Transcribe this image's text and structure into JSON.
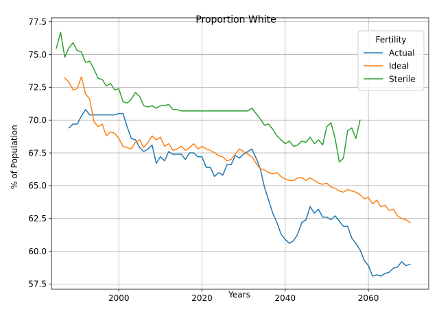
{
  "chart_data": {
    "type": "line",
    "title": "Proportion White",
    "xlabel": "Years",
    "ylabel": "% of Population",
    "xlim": [
      1983.8,
      2074.5
    ],
    "ylim": [
      57.1,
      77.8
    ],
    "xticks": [
      2000,
      2020,
      2040,
      2060
    ],
    "yticks": [
      57.5,
      60.0,
      62.5,
      65.0,
      67.5,
      70.0,
      72.5,
      75.0,
      77.5
    ],
    "grid": true,
    "legend": {
      "title": "Fertility",
      "position": "top-right"
    },
    "colors": {
      "Actual": "#1f77b4",
      "Ideal": "#ff7f0e",
      "Sterile": "#2ca02c"
    },
    "series": [
      {
        "name": "Actual",
        "x": [
          1988,
          1989,
          1990,
          1991,
          1992,
          1993,
          1994,
          1995,
          1996,
          1997,
          1998,
          1999,
          2000,
          2001,
          2002,
          2003,
          2004,
          2005,
          2006,
          2007,
          2008,
          2009,
          2010,
          2011,
          2012,
          2013,
          2014,
          2015,
          2016,
          2017,
          2018,
          2019,
          2020,
          2021,
          2022,
          2023,
          2024,
          2025,
          2026,
          2027,
          2028,
          2029,
          2030,
          2031,
          2032,
          2033,
          2034,
          2035,
          2036,
          2037,
          2038,
          2039,
          2040,
          2041,
          2042,
          2043,
          2044,
          2045,
          2046,
          2047,
          2048,
          2049,
          2050,
          2051,
          2052,
          2053,
          2054,
          2055,
          2056,
          2057,
          2058,
          2059,
          2060,
          2061,
          2062,
          2063,
          2064,
          2065,
          2066,
          2067,
          2068,
          2069,
          2070
        ],
        "y": [
          69.4,
          69.7,
          69.7,
          70.3,
          70.8,
          70.4,
          70.4,
          70.4,
          70.4,
          70.4,
          70.4,
          70.4,
          70.5,
          70.5,
          69.5,
          68.6,
          68.5,
          67.9,
          67.6,
          67.8,
          68.1,
          66.7,
          67.2,
          66.9,
          67.6,
          67.4,
          67.4,
          67.4,
          67.0,
          67.5,
          67.5,
          67.2,
          67.2,
          66.4,
          66.4,
          65.7,
          66.0,
          65.8,
          66.6,
          66.6,
          67.3,
          67.1,
          67.4,
          67.6,
          67.8,
          67.1,
          66.3,
          64.9,
          63.9,
          62.9,
          62.2,
          61.3,
          60.9,
          60.6,
          60.8,
          61.3,
          62.2,
          62.4,
          63.4,
          62.9,
          63.2,
          62.6,
          62.6,
          62.4,
          62.7,
          62.3,
          61.9,
          61.9,
          61.0,
          60.6,
          60.1,
          59.3,
          58.9,
          58.1,
          58.2,
          58.1,
          58.3,
          58.4,
          58.7,
          58.8,
          59.2,
          58.9,
          59.0
        ]
      },
      {
        "name": "Ideal",
        "x": [
          1987,
          1988,
          1989,
          1990,
          1991,
          1992,
          1993,
          1994,
          1995,
          1996,
          1997,
          1998,
          1999,
          2000,
          2001,
          2002,
          2003,
          2004,
          2005,
          2006,
          2007,
          2008,
          2009,
          2010,
          2011,
          2012,
          2013,
          2014,
          2015,
          2016,
          2017,
          2018,
          2019,
          2020,
          2021,
          2022,
          2023,
          2024,
          2025,
          2026,
          2027,
          2028,
          2029,
          2030,
          2031,
          2032,
          2033,
          2034,
          2035,
          2036,
          2037,
          2038,
          2039,
          2040,
          2041,
          2042,
          2043,
          2044,
          2045,
          2046,
          2047,
          2048,
          2049,
          2050,
          2051,
          2052,
          2053,
          2054,
          2055,
          2056,
          2057,
          2058,
          2059,
          2060,
          2061,
          2062,
          2063,
          2064,
          2065,
          2066,
          2067,
          2068,
          2069,
          2070
        ],
        "y": [
          73.2,
          72.9,
          72.3,
          72.4,
          73.3,
          72.0,
          71.6,
          69.9,
          69.5,
          69.7,
          68.8,
          69.1,
          69.0,
          68.6,
          68.0,
          67.9,
          67.8,
          68.3,
          68.5,
          67.9,
          68.3,
          68.8,
          68.5,
          68.7,
          68.0,
          68.2,
          67.7,
          67.8,
          68.0,
          67.7,
          67.9,
          68.2,
          67.8,
          68.0,
          67.8,
          67.7,
          67.5,
          67.3,
          67.2,
          66.9,
          67.0,
          67.4,
          67.8,
          67.6,
          67.4,
          67.2,
          66.7,
          66.3,
          66.2,
          66.0,
          65.9,
          66.0,
          65.7,
          65.5,
          65.4,
          65.4,
          65.6,
          65.6,
          65.4,
          65.6,
          65.4,
          65.2,
          65.1,
          65.2,
          64.9,
          64.8,
          64.6,
          64.5,
          64.7,
          64.6,
          64.5,
          64.3,
          64.0,
          64.1,
          63.6,
          63.9,
          63.4,
          63.5,
          63.1,
          63.2,
          62.7,
          62.5,
          62.4,
          62.2
        ]
      },
      {
        "name": "Sterile",
        "x": [
          1985,
          1986,
          1987,
          1988,
          1989,
          1990,
          1991,
          1992,
          1993,
          1994,
          1995,
          1996,
          1997,
          1998,
          1999,
          2000,
          2001,
          2002,
          2003,
          2004,
          2005,
          2006,
          2007,
          2008,
          2009,
          2010,
          2011,
          2012,
          2013,
          2014,
          2015,
          2016,
          2017,
          2018,
          2019,
          2020,
          2021,
          2022,
          2023,
          2024,
          2025,
          2026,
          2027,
          2028,
          2029,
          2030,
          2031,
          2032,
          2033,
          2034,
          2035,
          2036,
          2037,
          2038,
          2039,
          2040,
          2041,
          2042,
          2043,
          2044,
          2045,
          2046,
          2047,
          2048,
          2049,
          2050,
          2051,
          2052,
          2053,
          2054,
          2055,
          2056,
          2057,
          2058
        ],
        "y": [
          75.5,
          76.7,
          74.8,
          75.5,
          75.9,
          75.3,
          75.2,
          74.4,
          74.5,
          73.9,
          73.2,
          73.1,
          72.6,
          72.8,
          72.3,
          72.4,
          71.4,
          71.3,
          71.6,
          72.1,
          71.8,
          71.1,
          71.0,
          71.1,
          70.9,
          71.1,
          71.1,
          71.2,
          70.8,
          70.8,
          70.7,
          70.7,
          70.7,
          70.7,
          70.7,
          70.7,
          70.7,
          70.7,
          70.7,
          70.7,
          70.7,
          70.7,
          70.7,
          70.7,
          70.7,
          70.7,
          70.7,
          70.9,
          70.5,
          70.1,
          69.6,
          69.7,
          69.3,
          68.8,
          68.5,
          68.2,
          68.4,
          68.0,
          68.1,
          68.4,
          68.3,
          68.7,
          68.2,
          68.5,
          68.1,
          69.5,
          69.8,
          68.6,
          66.8,
          67.1,
          69.2,
          69.4,
          68.6,
          70.0
        ]
      }
    ]
  }
}
